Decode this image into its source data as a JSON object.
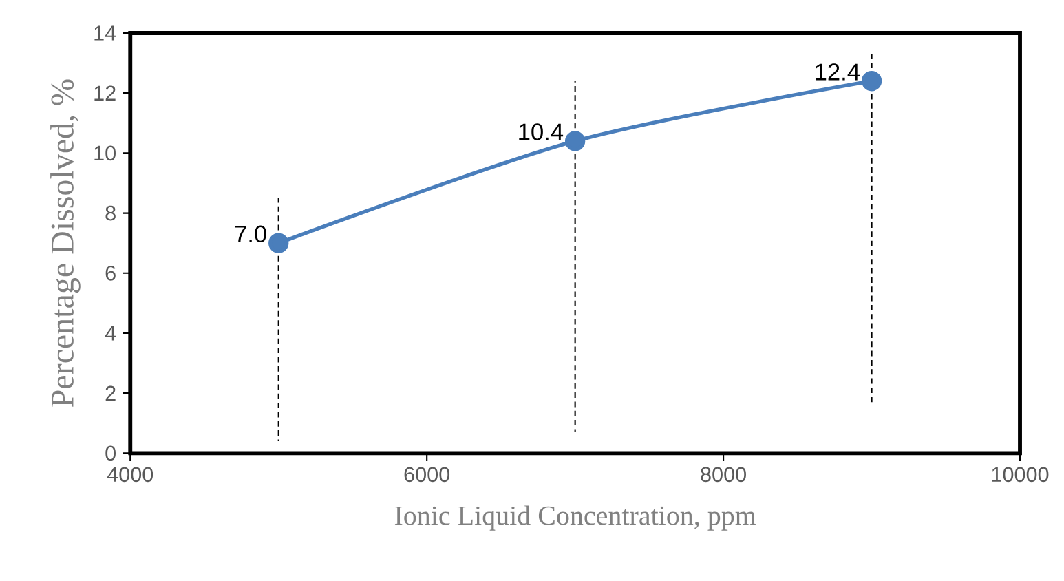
{
  "chart_data": {
    "type": "line",
    "xlabel": "Ionic Liquid Concentration, ppm",
    "ylabel": "Percentage Dissolved, %",
    "x": [
      5000,
      7000,
      9000
    ],
    "values": [
      7.0,
      10.4,
      12.4
    ],
    "value_labels": [
      "7.0",
      "10.4",
      "12.4"
    ],
    "errors": [
      [
        0.4,
        8.5
      ],
      [
        0.7,
        12.4
      ],
      [
        1.7,
        13.3
      ]
    ],
    "color": "#4a7ebb",
    "marker": "circle",
    "line_style": "solid",
    "xlim": [
      4000,
      10000
    ],
    "ylim": [
      0,
      14
    ],
    "xticks": [
      4000,
      6000,
      8000,
      10000
    ],
    "yticks": [
      0,
      2,
      4,
      6,
      8,
      10,
      12,
      14
    ]
  }
}
